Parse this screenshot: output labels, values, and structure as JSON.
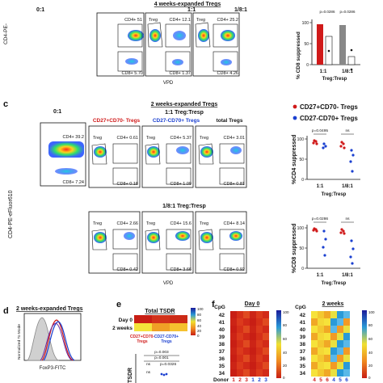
{
  "figure": {
    "panel_top": {
      "ylabel": "CD4-PE-",
      "xlabel": "VPD",
      "header": "4 weeks-expanded Tregs",
      "ratios": [
        "0:1",
        "1:1",
        "1/8:1"
      ],
      "gates": [
        {
          "upper": "CD4+ 51",
          "lower": "CD8+ 5.70",
          "treg": ""
        },
        {
          "upper": "CD4+ 12.1",
          "lower": "CD8+ 1.37",
          "treg": "Treg"
        },
        {
          "upper": "CD4+ 25.2",
          "lower": "CD8+ 4.26",
          "treg": "Treg"
        }
      ],
      "bar_chart": {
        "ylabel": "% CD8 suppressed",
        "p1": "p=0.0286",
        "p2": "p=0.0286",
        "xticks": [
          "1:1",
          "1/8:1"
        ],
        "xlabel": "Treg:Tresp",
        "yticks": [
          "100",
          "50",
          "0"
        ]
      }
    },
    "panel_c": {
      "letter": "c",
      "ylabel": "CD4-PE-eFluor610",
      "xlabel": "VPD",
      "control_label": "0:1",
      "header": "2 weeks-expanded Tregs",
      "row1_title": "1:1 Treg:Tresp",
      "row2_title": "1/8:1 Treg:Tresp",
      "col_labels": {
        "red": "CD27+CD70- Tregs",
        "blue": "CD27-CD70+ Tregs",
        "total": "total Tregs"
      },
      "control": {
        "upper": "CD4+ 39.2",
        "lower": "CD8+ 7.24"
      },
      "row1": [
        {
          "treg": "Treg",
          "upper": "CD4+ 0.61",
          "lower": "CD8+ 0.18"
        },
        {
          "treg": "Treg",
          "upper": "CD4+ 5.37",
          "lower": "CD8+ 1.09"
        },
        {
          "treg": "Treg",
          "upper": "CD4+ 3.01",
          "lower": "CD8+ 0.81"
        }
      ],
      "row2": [
        {
          "treg": "Treg",
          "upper": "CD4+ 2.66",
          "lower": "CD8+ 0.42"
        },
        {
          "treg": "Treg",
          "upper": "CD4+ 15.6",
          "lower": "CD8+ 3.66"
        },
        {
          "treg": "Treg",
          "upper": "CD4+ 8.14",
          "lower": "CD8+ 0.92"
        }
      ],
      "legend": {
        "red": "CD27+CD70- Tregs",
        "blue": "CD27-CD70+ Tregs"
      },
      "cd4_plot": {
        "ylabel": "%CD4 suppressed",
        "p": "p=0.0495",
        "ns": "ns",
        "xticks": [
          "1:1",
          "1/8:1"
        ],
        "xlabel": "Treg:Tresp",
        "yticks": [
          "100",
          "50",
          "0"
        ]
      },
      "cd8_plot": {
        "ylabel": "%CD8 suppressed",
        "p": "p=0.0286",
        "ns": "ns",
        "xticks": [
          "1:1",
          "1/8:1"
        ],
        "xlabel": "Treg:Tresp",
        "yticks": [
          "100",
          "50",
          "0"
        ]
      }
    },
    "panel_d": {
      "letter": "d",
      "title": "2 weeks-expanded Tregs",
      "xlabel": "FoxP3-FITC",
      "ylabel": "Normalized To Mode"
    },
    "panel_e": {
      "letter": "e",
      "title": "Total TSDR",
      "rows": [
        "Day 0",
        "2 weeks"
      ],
      "col_red": "CD27+CD70-",
      "col_blue": "CD27-CD70+",
      "col_sub": "Tregs",
      "scale": [
        "100",
        "80",
        "60",
        "40",
        "20",
        "0"
      ],
      "p1": "p=0.003",
      "p2": "p=0.001",
      "p3": "p=0.0326",
      "ns1": "ns",
      "ns2": "ns",
      "ylabel": "TSDR"
    },
    "panel_f": {
      "letter": "f",
      "left_title": "Day 0",
      "right_title": "2 weeks",
      "cpg_label": "CpG",
      "cpg": [
        "42",
        "41",
        "40",
        "39",
        "38",
        "37",
        "36",
        "35",
        "34"
      ],
      "donor_label": "Donor",
      "left_donors": [
        "1",
        "2",
        "3",
        "1",
        "2",
        "3"
      ],
      "right_donors": [
        "4",
        "5",
        "6",
        "4",
        "5",
        "6"
      ],
      "scale": [
        "100",
        "80",
        "60",
        "40",
        "20",
        "0"
      ]
    }
  },
  "colors": {
    "red": "#d01a1a",
    "blue": "#1a3fd0"
  }
}
